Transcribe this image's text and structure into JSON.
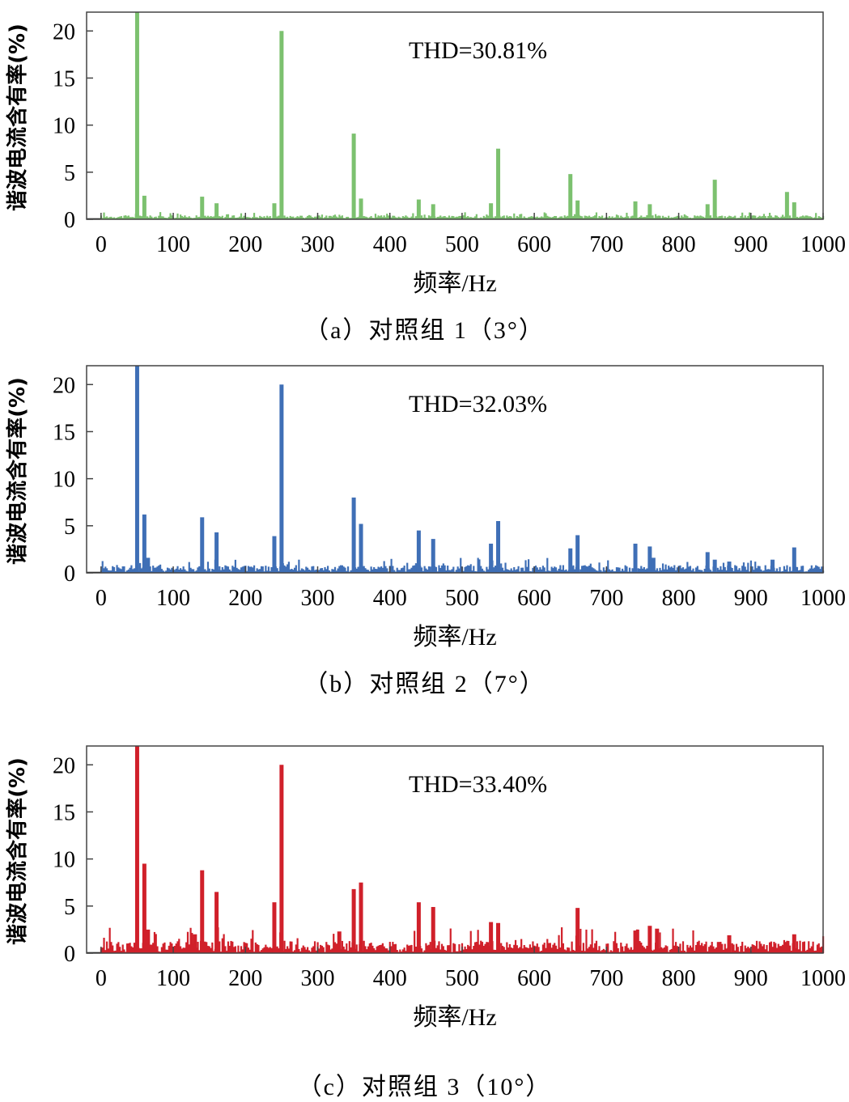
{
  "chart_data": [
    {
      "type": "bar",
      "panel": "a",
      "caption": "（a）对照组 1（3°）",
      "annotation": "THD=30.81%",
      "xlabel": "频率/Hz",
      "ylabel": "谐波电流含有率(%)",
      "xlim": [
        -20,
        1000
      ],
      "ylim": [
        0,
        22
      ],
      "xticks": [
        0,
        100,
        200,
        300,
        400,
        500,
        600,
        700,
        800,
        900,
        1000
      ],
      "yticks": [
        0,
        5,
        10,
        15,
        20
      ],
      "color": "#7cc16f",
      "x": [
        50,
        60,
        140,
        160,
        240,
        250,
        350,
        360,
        440,
        460,
        540,
        550,
        650,
        660,
        740,
        760,
        840,
        850,
        950,
        960
      ],
      "values": [
        22,
        2.5,
        2.4,
        1.7,
        1.7,
        20,
        9.1,
        2.2,
        2.1,
        1.6,
        1.7,
        7.5,
        4.8,
        2.0,
        1.9,
        1.6,
        1.6,
        4.2,
        2.9,
        1.8
      ],
      "noise": 0.3
    },
    {
      "type": "bar",
      "panel": "b",
      "caption": "（b）对照组 2（7°）",
      "annotation": "THD=32.03%",
      "xlabel": "频率/Hz",
      "ylabel": "谐波电流含有率(%)",
      "xlim": [
        -20,
        1000
      ],
      "ylim": [
        0,
        22
      ],
      "xticks": [
        0,
        100,
        200,
        300,
        400,
        500,
        600,
        700,
        800,
        900,
        1000
      ],
      "yticks": [
        0,
        5,
        10,
        15,
        20
      ],
      "color": "#3f6fb6",
      "x": [
        50,
        60,
        65,
        140,
        160,
        240,
        250,
        350,
        360,
        440,
        460,
        540,
        550,
        650,
        660,
        740,
        760,
        765,
        840,
        850,
        870,
        930,
        960
      ],
      "values": [
        22,
        6.2,
        1.6,
        5.9,
        4.3,
        3.9,
        20,
        8.0,
        5.2,
        4.5,
        3.6,
        3.1,
        5.5,
        2.6,
        4.0,
        3.1,
        2.8,
        1.6,
        2.2,
        1.4,
        1.2,
        1.4,
        2.7
      ],
      "noise": 0.7
    },
    {
      "type": "bar",
      "panel": "c",
      "caption": "（c）对照组 3（10°）",
      "annotation": "THD=33.40%",
      "xlabel": "频率/Hz",
      "ylabel": "谐波电流含有率(%)",
      "xlim": [
        -20,
        1000
      ],
      "ylim": [
        0,
        22
      ],
      "xticks": [
        0,
        100,
        200,
        300,
        400,
        500,
        600,
        700,
        800,
        900,
        1000
      ],
      "yticks": [
        0,
        5,
        10,
        15,
        20
      ],
      "color": "#d0202a",
      "x": [
        50,
        60,
        65,
        140,
        130,
        160,
        240,
        250,
        330,
        350,
        360,
        440,
        460,
        540,
        550,
        660,
        740,
        760,
        770,
        870,
        960
      ],
      "values": [
        22,
        9.5,
        2.5,
        8.8,
        2.0,
        6.5,
        5.4,
        20,
        2.3,
        6.8,
        7.5,
        5.4,
        4.9,
        3.3,
        3.2,
        4.8,
        2.4,
        2.9,
        2.6,
        1.9,
        2.0
      ],
      "noise": 1.2
    }
  ]
}
